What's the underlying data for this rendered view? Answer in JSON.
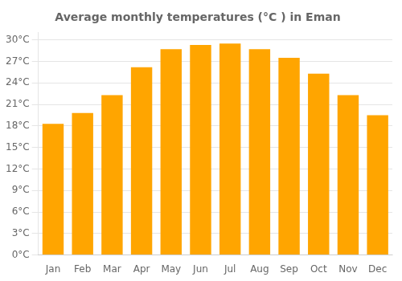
{
  "chart_data": {
    "type": "bar",
    "title": "Average monthly temperatures (°C ) in Eman",
    "categories": [
      "Jan",
      "Feb",
      "Mar",
      "Apr",
      "May",
      "Jun",
      "Jul",
      "Aug",
      "Sep",
      "Oct",
      "Nov",
      "Dec"
    ],
    "values": [
      18.3,
      19.8,
      22.3,
      26.2,
      28.7,
      29.3,
      29.5,
      28.7,
      27.5,
      25.3,
      22.3,
      19.5
    ],
    "color": "#FFA500",
    "ylim": [
      0,
      31
    ],
    "yticks": [
      {
        "value": 0,
        "label": "0°C"
      },
      {
        "value": 3,
        "label": "3°C"
      },
      {
        "value": 6,
        "label": "6°C"
      },
      {
        "value": 9,
        "label": "9°C"
      },
      {
        "value": 12,
        "label": "12°C"
      },
      {
        "value": 15,
        "label": "15°C"
      },
      {
        "value": 18,
        "label": "18°C"
      },
      {
        "value": 21,
        "label": "21°C"
      },
      {
        "value": 24,
        "label": "24°C"
      },
      {
        "value": 27,
        "label": "27°C"
      },
      {
        "value": 30,
        "label": "30°C"
      }
    ],
    "grid": true
  }
}
